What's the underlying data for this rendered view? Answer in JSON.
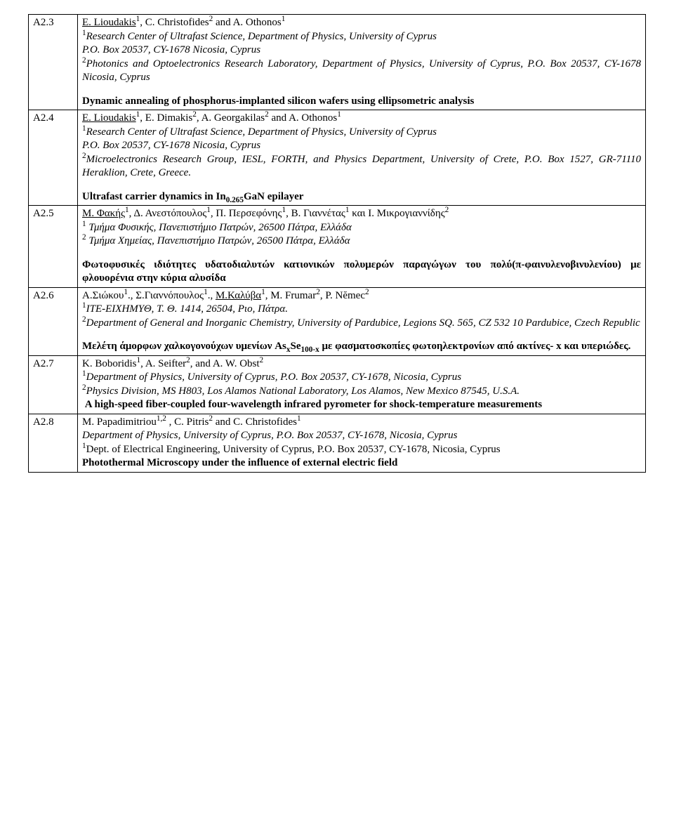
{
  "rows": [
    {
      "id": "A2.3",
      "authors_html": "<span class='u'>E. Lioudakis</span><sup>1</sup>, C. Christofides<sup>2</sup> and A. Othonos<sup>1</sup>",
      "affils": [
        "<sup>1</sup><span class='i'>Research Center of Ultrafast Science, Department of Physics, University of Cyprus</span>",
        "<span class='i'>P.O. Box 20537, CY-1678 Nicosia, Cyprus</span>",
        "<sup>2</sup><span class='i'>Photonics and Optoelectronics Research Laboratory, Department of Physics, University of Cyprus, P.O. Box 20537, CY-1678 Nicosia, Cyprus</span>"
      ],
      "title_html": "Dynamic annealing of phosphorus-implanted silicon wafers using ellipsometric analysis"
    },
    {
      "id": "A2.4",
      "authors_html": "<span class='u'>E. Lioudakis</span><sup>1</sup>, E. Dimakis<sup>2</sup>, A. Georgakilas<sup>2</sup> and A. Othonos<sup>1</sup>",
      "affils": [
        "<sup>1</sup><span class='i'>Research Center of Ultrafast Science, Department of Physics, University of Cyprus</span>",
        "<span class='i'>P.O. Box 20537, CY-1678 Nicosia, Cyprus</span>",
        "<sup>2</sup><span class='i'>Microelectronics Research Group, IESL, FORTH, and Physics Department, University of Crete, P.O. Box 1527, GR-71110 Heraklion, Crete, Greece.</span>"
      ],
      "title_html": "Ultrafast carrier dynamics in In<sub>0.265</sub>GaN epilayer"
    },
    {
      "id": "A2.5",
      "authors_html": "<span class='u'>Μ. Φακής</span><sup>1</sup>, Δ. Ανεστόπουλος<sup>1</sup>, Π. Περσεφόνης<sup>1</sup>, Β. Γιαννέτας<sup>1</sup> και Ι. Μικρογιαννίδης<sup>2</sup>",
      "affils": [
        "<sup>1</sup> <span class='i'>Τμήμα Φυσικής, Πανεπιστήμιο Πατρών, 26500 Πάτρα, Ελλάδα</span>",
        "<sup>2</sup> <span class='i'>Τμήμα Χημείας, Πανεπιστήμιο Πατρών, 26500 Πάτρα, Ελλάδα</span>"
      ],
      "title_html": "Φωτοφυσικές ιδιότητες υδατοδιαλυτών κατιονικών πολυμερών παραγώγων του πολύ(π-φαινυλενοβινυλενίου) με φλουορένια στην κύρια αλυσίδα"
    },
    {
      "id": "A2.6",
      "authors_html": "Α.Σιώκου<sup>1</sup>., Σ.Γιαννόπουλος<sup>1</sup>., <span class='u'>Μ.Καλύβα</span><sup>1</sup>, M. Frumar<sup>2</sup>,  P. Nĕmec<sup>2</sup>",
      "affils": [
        "<sup>1</sup><span class='i'>ΙΤΕ-ΕΙΧΗΜΥΘ, Τ. Θ. 1414, 26504, Ριο, Πάτρα.</span>",
        "<sup>2</sup><span class='i'>Department of General and Inorganic Chemistry, University of Pardubice, Legions SQ. 565, CZ 532 10 Pardubice, Czech Republic</span>"
      ],
      "title_html": "Μελέτη άμορφων χαλκογονούχων υμενίων As<sub>x</sub>Se<sub>100-x</sub> με φασματοσκοπίες φωτοηλεκτρονίων από ακτίνες- x και υπεριώδες."
    },
    {
      "id": "A2.7",
      "authors_html": "K. Boboridis<sup>1</sup>, A. Seifter<sup>2</sup>, and A. W. Obst<sup>2</sup>",
      "affils": [
        "<sup>1</sup><span class='i'>Department of Physics, University of Cyprus, P.O. Box 20537, CY-1678, Nicosia, Cyprus</span>",
        "<sup>2</sup><span class='i'>Physics Division, MS H803, Los Alamos National Laboratory, Los Alamos, New Mexico 87545, U.S.A.</span>"
      ],
      "title_html": "&nbsp;A high-speed fiber-coupled four-wavelength infrared pyrometer for shock-temperature measurements",
      "title_after_affils": true
    },
    {
      "id": "A2.8",
      "authors_html": "M. Papadimitriou<sup>1,2</sup> , C. Pitris<sup>2</sup> and C. Christofides<sup>1</sup>",
      "affils": [
        "<span class='i'>Department of Physics, University of Cyprus, P.O. Box 20537, CY-1678, Nicosia, Cyprus</span>",
        "<sup>1</sup>Dept. of Electrical Engineering, University of Cyprus, P.O. Box 20537, CY-1678, Nicosia, Cyprus"
      ],
      "title_html": "Photothermal Microscopy under the influence of external electric field",
      "title_after_affils": true
    }
  ]
}
